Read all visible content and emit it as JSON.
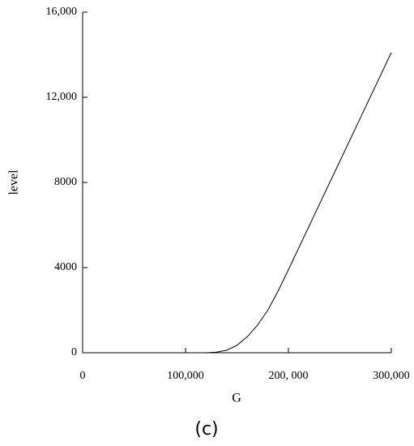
{
  "chart_data": {
    "type": "line",
    "x_label": "G",
    "y_label": "level",
    "caption": "(c)",
    "x": [
      0,
      100000,
      120000,
      130000,
      140000,
      150000,
      160000,
      170000,
      180000,
      190000,
      200000,
      225000,
      250000,
      275000,
      300000
    ],
    "series": [
      {
        "name": "level",
        "color": "#000000",
        "values": [
          0,
          0,
          0,
          30,
          120,
          350,
          750,
          1300,
          2000,
          2900,
          3900,
          6450,
          9000,
          11550,
          14100
        ]
      }
    ],
    "xlim": [
      0,
      300000
    ],
    "xticks": [
      0,
      {
        "value": 100000,
        "label": "100,000"
      },
      {
        "value": 200000,
        "label": "200, 000"
      },
      {
        "value": 300000,
        "label": "300,000"
      }
    ],
    "ylim": [
      0,
      16000
    ],
    "yticks": [
      0,
      4000,
      8000,
      {
        "value": 12000,
        "label": "12,000"
      },
      {
        "value": 16000,
        "label": "16,000"
      }
    ]
  }
}
